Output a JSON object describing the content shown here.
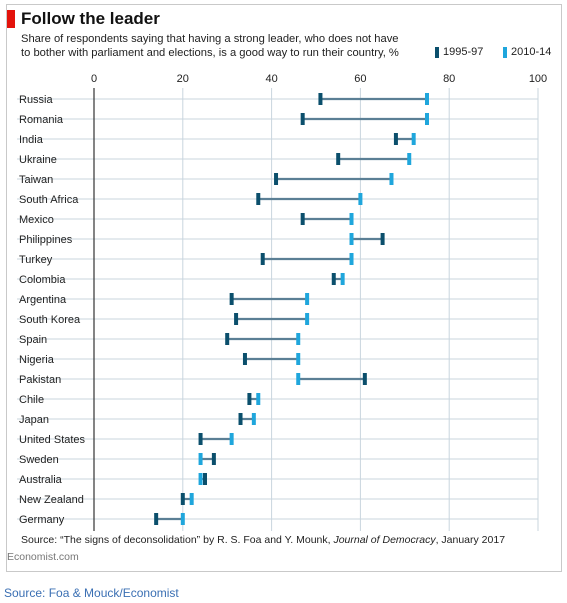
{
  "title": "Follow the leader",
  "subtitle": "Share of respondents saying that having a strong leader, who does not have to bother with parliament and elections, is a good way to run their country, %",
  "source_prefix": "Source: “The signs of deconsolidation” by R. S. Foa and Y. Mounk, ",
  "source_journal": "Journal of Democracy",
  "source_suffix": ", January 2017",
  "brand": "Economist.com",
  "footer": "Source: Foa & Mouck/Economist",
  "colors": {
    "period1": "#0b4f6c",
    "period2": "#1fa6dc",
    "connector": "#5b7f95",
    "grid": "#c9d5de",
    "accent": "#e3120b"
  },
  "chart_data": {
    "type": "dumbbell",
    "xlim": [
      0,
      100
    ],
    "xticks": [
      "0",
      "20",
      "40",
      "60",
      "80",
      "100"
    ],
    "grid": true,
    "legend_position": "top-right",
    "series": [
      {
        "name": "1995-97",
        "values": [
          51,
          47,
          68,
          55,
          41,
          37,
          47,
          65,
          38,
          54,
          31,
          32,
          30,
          34,
          61,
          35,
          33,
          24,
          27,
          25,
          20,
          14
        ]
      },
      {
        "name": "2010-14",
        "values": [
          75,
          75,
          72,
          71,
          67,
          60,
          58,
          58,
          58,
          56,
          48,
          48,
          46,
          46,
          46,
          37,
          36,
          31,
          24,
          24,
          22,
          20
        ]
      }
    ],
    "categories": [
      "Russia",
      "Romania",
      "India",
      "Ukraine",
      "Taiwan",
      "South Africa",
      "Mexico",
      "Philippines",
      "Turkey",
      "Colombia",
      "Argentina",
      "South Korea",
      "Spain",
      "Nigeria",
      "Pakistan",
      "Chile",
      "Japan",
      "United States",
      "Sweden",
      "Australia",
      "New Zealand",
      "Germany"
    ]
  }
}
